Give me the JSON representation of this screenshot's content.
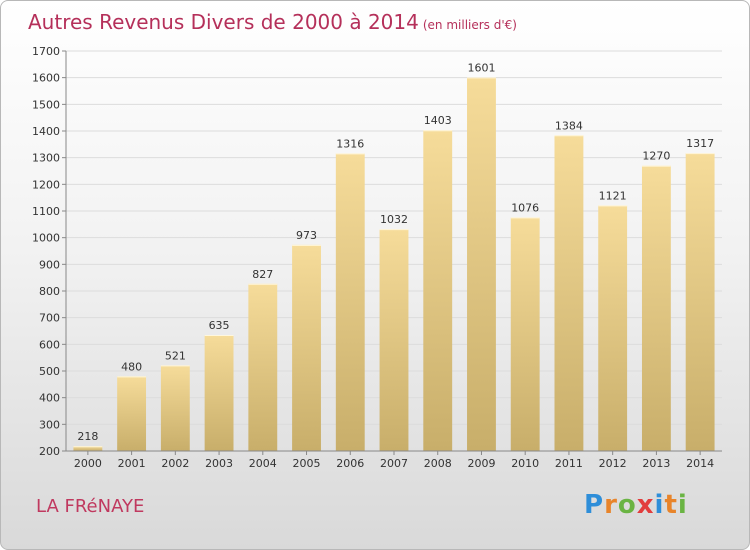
{
  "header": {
    "title": "Autres Revenus Divers de 2000 à 2014",
    "unit_note": "(en milliers d'€)"
  },
  "footer": {
    "place": "LA FRéNAYE",
    "logo_text": "Proxiti",
    "logo_colors": [
      "#2e8ed9",
      "#e8842a",
      "#6ab443",
      "#e23d3d"
    ]
  },
  "chart_data": {
    "type": "bar",
    "categories": [
      "2000",
      "2001",
      "2002",
      "2003",
      "2004",
      "2005",
      "2006",
      "2007",
      "2008",
      "2009",
      "2010",
      "2011",
      "2012",
      "2013",
      "2014"
    ],
    "values": [
      218,
      480,
      521,
      635,
      827,
      973,
      1316,
      1032,
      1403,
      1601,
      1076,
      1384,
      1121,
      1270,
      1317
    ],
    "ylim": [
      200,
      1700
    ],
    "yticks": [
      200,
      300,
      400,
      500,
      600,
      700,
      800,
      900,
      1000,
      1100,
      1200,
      1300,
      1400,
      1500,
      1600,
      1700
    ],
    "title": "Autres Revenus Divers de 2000 à 2014",
    "xlabel": "",
    "ylabel": "",
    "grid": true,
    "bar_color_top": "#f6dc9a",
    "bar_color_bottom": "#c8ae6a"
  }
}
